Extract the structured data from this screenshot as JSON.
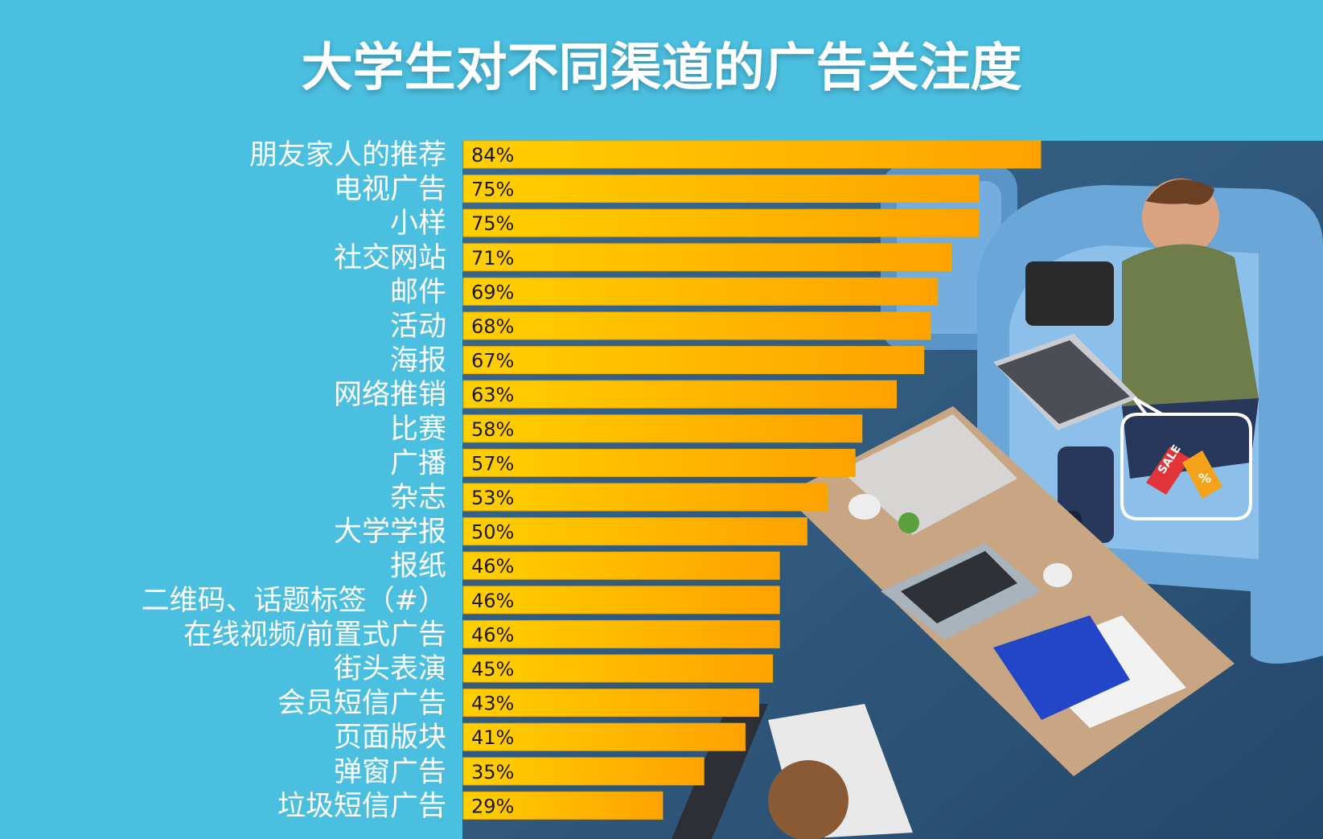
{
  "colors": {
    "background": "#4bbfe0",
    "bar_start": "#ffd000",
    "bar_end": "#ffa200",
    "bar_border": "#e8a900"
  },
  "chart_data": {
    "type": "bar",
    "orientation": "horizontal",
    "title": "大学生对不同渠道的广告关注度",
    "categories": [
      "朋友家人的推荐",
      "电视广告",
      "小样",
      "社交网站",
      "邮件",
      "活动",
      "海报",
      "网络推销",
      "比赛",
      "广播",
      "杂志",
      "大学学报",
      "报纸",
      "二维码、话题标签（#）",
      "在线视频/前置式广告",
      "街头表演",
      "会员短信广告",
      "页面版块",
      "弹窗广告",
      "垃圾短信广告"
    ],
    "values": [
      84,
      75,
      75,
      71,
      69,
      68,
      67,
      63,
      58,
      57,
      53,
      50,
      46,
      46,
      46,
      45,
      43,
      41,
      35,
      29
    ],
    "value_labels": [
      "84%",
      "75%",
      "75%",
      "71%",
      "69%",
      "68%",
      "67%",
      "63%",
      "58%",
      "57%",
      "53%",
      "50%",
      "46%",
      "46%",
      "46%",
      "45%",
      "43%",
      "41%",
      "35%",
      "29%"
    ],
    "xlim": [
      0,
      84
    ],
    "grid": false,
    "legend": "none"
  },
  "photo": {
    "icons": [
      "armchair-icon",
      "student-with-laptop-icon",
      "coffee-table-icon",
      "coffee-cup-icon",
      "sale-tag-icon",
      "percent-tag-icon"
    ],
    "tag_text_sale": "SALE",
    "tag_text_percent": "%"
  }
}
